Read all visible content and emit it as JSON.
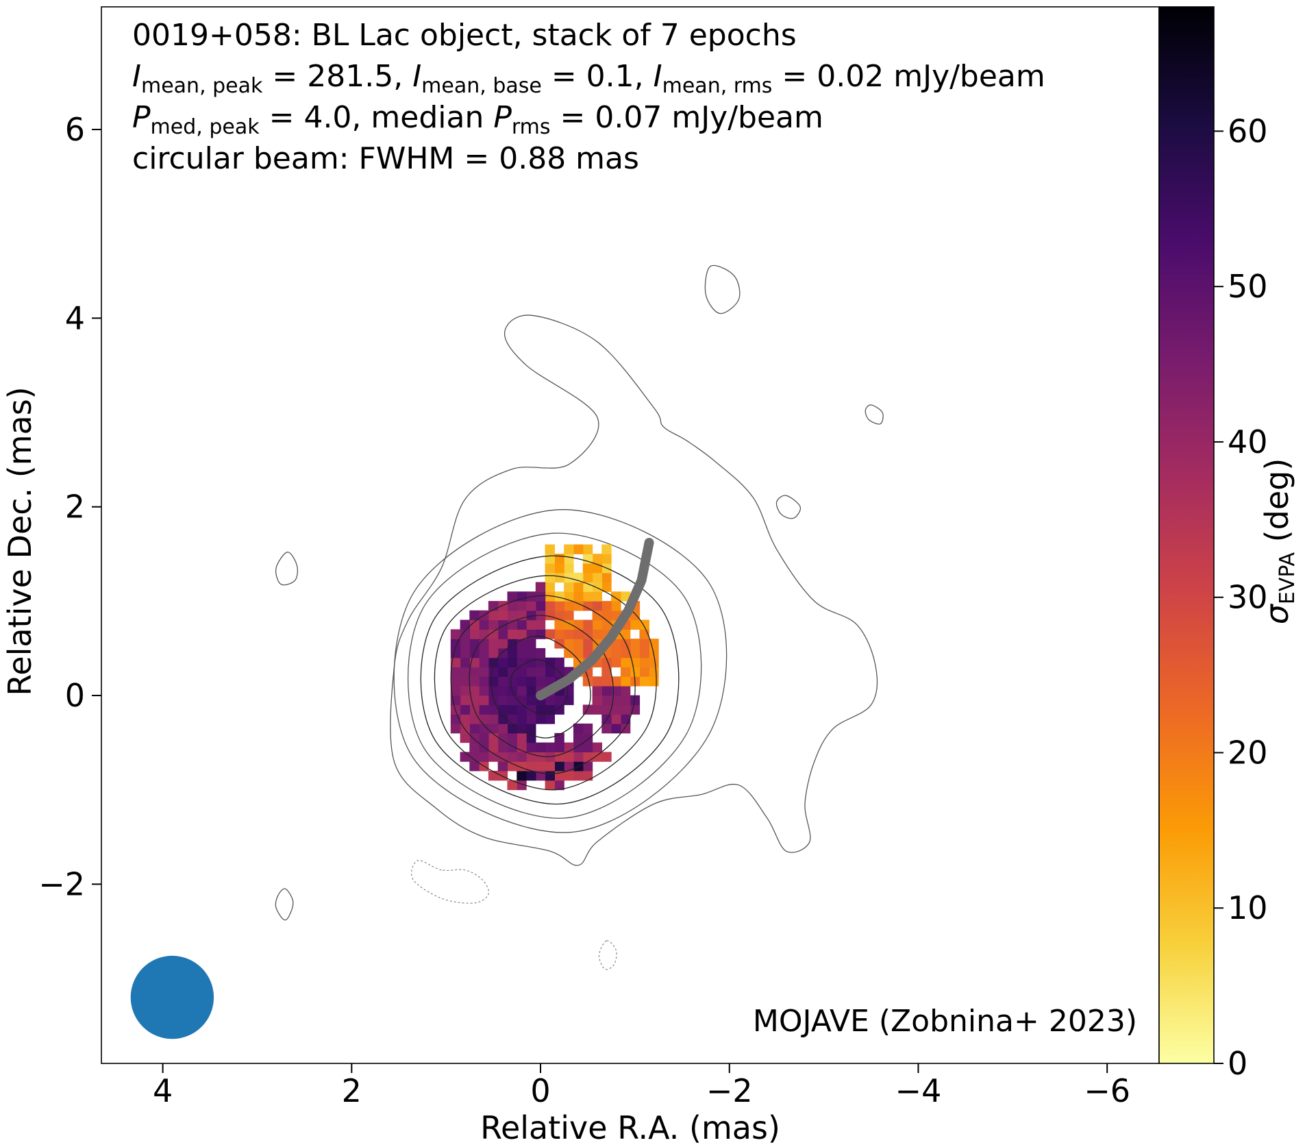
{
  "chart_data": {
    "type": "heatmap",
    "header_lines": [
      [
        {
          "t": "0019+058: BL Lac object, stack of 7 epochs"
        }
      ],
      [
        {
          "t": "I",
          "i": true
        },
        {
          "t": "mean, peak",
          "sub": true
        },
        {
          "t": " = 281.5, "
        },
        {
          "t": "I",
          "i": true
        },
        {
          "t": "mean, base",
          "sub": true
        },
        {
          "t": " = 0.1, "
        },
        {
          "t": "I",
          "i": true
        },
        {
          "t": "mean, rms",
          "sub": true
        },
        {
          "t": " = 0.02 mJy/beam"
        }
      ],
      [
        {
          "t": "P",
          "i": true
        },
        {
          "t": "med, peak",
          "sub": true
        },
        {
          "t": " = 4.0, median "
        },
        {
          "t": "P",
          "i": true
        },
        {
          "t": "rms",
          "sub": true
        },
        {
          "t": " = 0.07 mJy/beam"
        }
      ],
      [
        {
          "t": "circular beam: FWHM = 0.88 mas"
        }
      ]
    ],
    "credit": "MOJAVE (Zobnina+ 2023)",
    "xlabel": "Relative R.A. (mas)",
    "ylabel": "Relative Dec. (mas)",
    "x_ticks": [
      {
        "v": 4,
        "label": "4"
      },
      {
        "v": 2,
        "label": "2"
      },
      {
        "v": 0,
        "label": "0"
      },
      {
        "v": -2,
        "label": "−2"
      },
      {
        "v": -4,
        "label": "−4"
      },
      {
        "v": -6,
        "label": "−6"
      }
    ],
    "y_ticks": [
      {
        "v": -2,
        "label": "−2"
      },
      {
        "v": 0,
        "label": "0"
      },
      {
        "v": 2,
        "label": "2"
      },
      {
        "v": 4,
        "label": "4"
      },
      {
        "v": 6,
        "label": "6"
      }
    ],
    "xlim": [
      4.65,
      -6.55
    ],
    "ylim": [
      -3.9,
      7.3
    ],
    "x_inverted": true,
    "colorbar": {
      "label_main": "σ",
      "label_sub": "EVPA",
      "label_rest": " (deg)",
      "range": [
        0,
        68
      ],
      "ticks": [
        {
          "v": 0,
          "label": "0"
        },
        {
          "v": 10,
          "label": "10"
        },
        {
          "v": 20,
          "label": "20"
        },
        {
          "v": 30,
          "label": "30"
        },
        {
          "v": 40,
          "label": "40"
        },
        {
          "v": 50,
          "label": "50"
        },
        {
          "v": 60,
          "label": "60"
        }
      ],
      "colormap": "inferno_r",
      "stops": [
        "#fcffa4",
        "#f7d13d",
        "#fb9b06",
        "#ed6925",
        "#cf4446",
        "#a52c60",
        "#781c6d",
        "#4a0c6b",
        "#1b0c41",
        "#000004"
      ]
    },
    "beam": {
      "x": 3.9,
      "y": -3.2,
      "fwhm_mas": 0.88,
      "color": "#1f77b4"
    },
    "jet_ridge": {
      "color": "#6e6e6e",
      "points": [
        [
          0,
          0
        ],
        [
          -0.3,
          0.17
        ],
        [
          -0.55,
          0.38
        ],
        [
          -0.75,
          0.62
        ],
        [
          -0.93,
          0.9
        ],
        [
          -1.07,
          1.22
        ],
        [
          -1.15,
          1.62
        ]
      ]
    },
    "contours": {
      "color": "#555555",
      "center": [
        0.03,
        0.08
      ],
      "closed": [
        {
          "ring": [
            [
              0.03,
              0.38
            ],
            [
              -0.23,
              0.21
            ],
            [
              -0.27,
              -0.05
            ],
            [
              -0.03,
              -0.2
            ],
            [
              0.25,
              -0.04
            ],
            [
              0.3,
              0.22
            ]
          ]
        },
        {
          "ring": [
            [
              0.03,
              0.63
            ],
            [
              -0.43,
              0.34
            ],
            [
              -0.5,
              -0.14
            ],
            [
              -0.06,
              -0.45
            ],
            [
              0.44,
              -0.16
            ],
            [
              0.48,
              0.36
            ]
          ]
        },
        {
          "ring": [
            [
              0.0,
              0.85
            ],
            [
              -0.65,
              0.48
            ],
            [
              -0.72,
              -0.22
            ],
            [
              -0.08,
              -0.65
            ],
            [
              0.65,
              -0.25
            ],
            [
              0.68,
              0.5
            ]
          ]
        },
        {
          "ring": [
            [
              -0.03,
              1.06
            ],
            [
              -0.86,
              0.63
            ],
            [
              -0.93,
              -0.28
            ],
            [
              -0.12,
              -0.83
            ],
            [
              0.82,
              -0.33
            ],
            [
              0.85,
              0.62
            ]
          ]
        },
        {
          "ring": [
            [
              -0.06,
              1.27
            ],
            [
              -1.07,
              0.78
            ],
            [
              -1.13,
              -0.33
            ],
            [
              -0.15,
              -1.0
            ],
            [
              0.97,
              -0.42
            ],
            [
              1.0,
              0.72
            ]
          ]
        },
        {
          "ring": [
            [
              -0.1,
              1.48
            ],
            [
              -1.28,
              0.92
            ],
            [
              -1.35,
              -0.38
            ],
            [
              -0.2,
              -1.15
            ],
            [
              1.1,
              -0.5
            ],
            [
              1.12,
              0.82
            ]
          ]
        },
        {
          "ring": [
            [
              -0.15,
              1.72
            ],
            [
              -1.52,
              1.05
            ],
            [
              -1.55,
              -0.4
            ],
            [
              -0.25,
              -1.3
            ],
            [
              1.22,
              -0.58
            ],
            [
              1.23,
              0.95
            ]
          ]
        },
        {
          "ring": [
            [
              -0.2,
              1.97
            ],
            [
              -1.78,
              1.2
            ],
            [
              -1.78,
              -0.42
            ],
            [
              -0.32,
              -1.45
            ],
            [
              1.35,
              -0.66
            ],
            [
              1.35,
              1.08
            ]
          ]
        }
      ],
      "outer": [
        [
          1.05,
          1.35
        ],
        [
          0.8,
          2.08
        ],
        [
          0.3,
          2.4
        ],
        [
          -0.3,
          2.45
        ],
        [
          -0.6,
          2.95
        ],
        [
          0.15,
          3.5
        ],
        [
          0.38,
          3.85
        ],
        [
          0.1,
          4.03
        ],
        [
          -0.6,
          3.75
        ],
        [
          -1.2,
          3.05
        ],
        [
          -1.3,
          2.85
        ],
        [
          -1.55,
          2.7
        ],
        [
          -1.85,
          2.48
        ],
        [
          -2.25,
          2.1
        ],
        [
          -2.5,
          1.55
        ],
        [
          -2.9,
          1.0
        ],
        [
          -3.35,
          0.75
        ],
        [
          -3.55,
          0.3
        ],
        [
          -3.5,
          -0.1
        ],
        [
          -3.1,
          -0.35
        ],
        [
          -2.9,
          -0.7
        ],
        [
          -2.8,
          -1.15
        ],
        [
          -2.85,
          -1.55
        ],
        [
          -2.6,
          -1.65
        ],
        [
          -2.4,
          -1.3
        ],
        [
          -2.1,
          -0.95
        ],
        [
          -1.7,
          -1.05
        ],
        [
          -1.2,
          -1.15
        ],
        [
          -0.6,
          -1.55
        ],
        [
          -0.4,
          -1.8
        ],
        [
          -0.1,
          -1.65
        ],
        [
          0.6,
          -1.5
        ],
        [
          1.1,
          -1.2
        ],
        [
          1.55,
          -0.7
        ],
        [
          1.55,
          0.3
        ],
        [
          1.4,
          0.8
        ]
      ],
      "islands": [
        [
          [
            -1.8,
            4.55
          ],
          [
            -2.05,
            4.45
          ],
          [
            -2.1,
            4.2
          ],
          [
            -1.9,
            4.05
          ],
          [
            -1.75,
            4.25
          ]
        ],
        [
          [
            -3.5,
            3.08
          ],
          [
            -3.62,
            3.0
          ],
          [
            -3.6,
            2.88
          ],
          [
            -3.48,
            2.92
          ],
          [
            -3.44,
            3.02
          ]
        ],
        [
          [
            -2.6,
            2.12
          ],
          [
            -2.75,
            2.0
          ],
          [
            -2.68,
            1.88
          ],
          [
            -2.55,
            1.92
          ],
          [
            -2.5,
            2.05
          ]
        ],
        [
          [
            2.68,
            1.52
          ],
          [
            2.58,
            1.38
          ],
          [
            2.6,
            1.22
          ],
          [
            2.75,
            1.18
          ],
          [
            2.8,
            1.35
          ]
        ],
        [
          [
            2.7,
            -2.05
          ],
          [
            2.62,
            -2.2
          ],
          [
            2.7,
            -2.38
          ],
          [
            2.8,
            -2.25
          ],
          [
            2.78,
            -2.12
          ]
        ]
      ],
      "dashed": [
        [
          [
            1.05,
            -1.85
          ],
          [
            1.3,
            -1.75
          ],
          [
            1.35,
            -1.95
          ],
          [
            1.05,
            -2.15
          ],
          [
            0.7,
            -2.2
          ],
          [
            0.55,
            -2.1
          ],
          [
            0.62,
            -1.95
          ],
          [
            0.8,
            -1.85
          ]
        ],
        [
          [
            -0.7,
            -2.6
          ],
          [
            -0.8,
            -2.7
          ],
          [
            -0.78,
            -2.85
          ],
          [
            -0.68,
            -2.9
          ],
          [
            -0.62,
            -2.75
          ]
        ]
      ]
    },
    "evpa_grid": {
      "cell_mas": 0.1,
      "x_range": [
        -1.2,
        0.95
      ],
      "y_range": [
        -0.95,
        1.55
      ]
    }
  }
}
